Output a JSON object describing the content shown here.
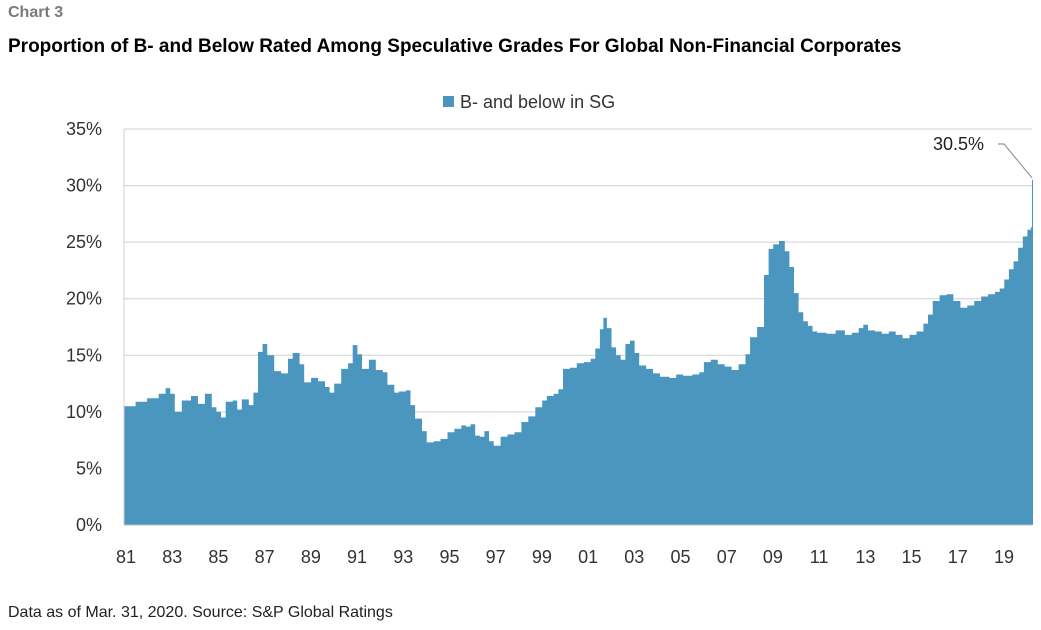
{
  "header": {
    "eyebrow": "Chart 3",
    "title": "Proportion of B- and Below Rated Among Speculative Grades For Global Non-Financial Corporates"
  },
  "footer": {
    "source": "Data as of Mar. 31, 2020. Source: S&P Global Ratings"
  },
  "chart_data": {
    "type": "area",
    "title": "Proportion of B- and Below Rated Among Speculative Grades For Global Non-Financial Corporates",
    "xlabel": "",
    "ylabel": "",
    "series": [
      {
        "name": "B- and below in SG",
        "color": "#4a96bf",
        "points": [
          [
            1981.0,
            10.5
          ],
          [
            1981.5,
            10.9
          ],
          [
            1982.0,
            11.2
          ],
          [
            1982.5,
            11.6
          ],
          [
            1982.8,
            12.1
          ],
          [
            1983.0,
            11.6
          ],
          [
            1983.2,
            10.0
          ],
          [
            1983.5,
            11.0
          ],
          [
            1983.9,
            11.4
          ],
          [
            1984.2,
            10.7
          ],
          [
            1984.5,
            11.6
          ],
          [
            1984.8,
            10.4
          ],
          [
            1985.0,
            10.0
          ],
          [
            1985.2,
            9.5
          ],
          [
            1985.4,
            10.9
          ],
          [
            1985.7,
            11.0
          ],
          [
            1985.9,
            10.2
          ],
          [
            1986.1,
            11.1
          ],
          [
            1986.4,
            10.6
          ],
          [
            1986.6,
            11.7
          ],
          [
            1986.8,
            15.3
          ],
          [
            1987.0,
            16.0
          ],
          [
            1987.2,
            15.0
          ],
          [
            1987.5,
            13.6
          ],
          [
            1987.8,
            13.4
          ],
          [
            1988.1,
            14.7
          ],
          [
            1988.3,
            15.2
          ],
          [
            1988.6,
            14.2
          ],
          [
            1988.8,
            12.6
          ],
          [
            1989.1,
            13.0
          ],
          [
            1989.4,
            12.7
          ],
          [
            1989.7,
            12.2
          ],
          [
            1989.9,
            11.7
          ],
          [
            1990.1,
            12.5
          ],
          [
            1990.4,
            13.8
          ],
          [
            1990.7,
            14.3
          ],
          [
            1990.9,
            15.9
          ],
          [
            1991.1,
            15.1
          ],
          [
            1991.3,
            13.8
          ],
          [
            1991.6,
            14.6
          ],
          [
            1991.9,
            13.7
          ],
          [
            1992.2,
            13.5
          ],
          [
            1992.4,
            12.4
          ],
          [
            1992.7,
            11.7
          ],
          [
            1992.9,
            11.8
          ],
          [
            1993.2,
            11.9
          ],
          [
            1993.4,
            10.6
          ],
          [
            1993.6,
            9.4
          ],
          [
            1993.9,
            8.3
          ],
          [
            1994.1,
            7.3
          ],
          [
            1994.4,
            7.4
          ],
          [
            1994.7,
            7.6
          ],
          [
            1995.0,
            8.2
          ],
          [
            1995.3,
            8.5
          ],
          [
            1995.6,
            8.8
          ],
          [
            1995.8,
            8.7
          ],
          [
            1996.0,
            8.9
          ],
          [
            1996.2,
            7.9
          ],
          [
            1996.4,
            7.8
          ],
          [
            1996.6,
            8.3
          ],
          [
            1996.8,
            7.4
          ],
          [
            1997.0,
            7.0
          ],
          [
            1997.3,
            7.8
          ],
          [
            1997.6,
            8.0
          ],
          [
            1997.9,
            8.2
          ],
          [
            1998.2,
            9.1
          ],
          [
            1998.5,
            9.6
          ],
          [
            1998.8,
            10.4
          ],
          [
            1999.1,
            11.0
          ],
          [
            1999.3,
            11.4
          ],
          [
            1999.6,
            11.6
          ],
          [
            1999.8,
            12.0
          ],
          [
            2000.0,
            13.8
          ],
          [
            2000.3,
            13.9
          ],
          [
            2000.6,
            14.3
          ],
          [
            2000.9,
            14.4
          ],
          [
            2001.2,
            14.7
          ],
          [
            2001.4,
            15.6
          ],
          [
            2001.6,
            17.3
          ],
          [
            2001.75,
            18.3
          ],
          [
            2001.9,
            17.4
          ],
          [
            2002.1,
            15.7
          ],
          [
            2002.3,
            15.0
          ],
          [
            2002.5,
            14.6
          ],
          [
            2002.7,
            16.0
          ],
          [
            2002.9,
            16.3
          ],
          [
            2003.1,
            15.2
          ],
          [
            2003.3,
            14.1
          ],
          [
            2003.6,
            13.8
          ],
          [
            2003.9,
            13.4
          ],
          [
            2004.2,
            13.1
          ],
          [
            2004.6,
            13.0
          ],
          [
            2004.9,
            13.3
          ],
          [
            2005.2,
            13.2
          ],
          [
            2005.6,
            13.3
          ],
          [
            2005.9,
            13.5
          ],
          [
            2006.1,
            14.4
          ],
          [
            2006.4,
            14.6
          ],
          [
            2006.7,
            14.2
          ],
          [
            2007.0,
            14.0
          ],
          [
            2007.3,
            13.7
          ],
          [
            2007.6,
            14.2
          ],
          [
            2007.9,
            15.1
          ],
          [
            2008.1,
            16.6
          ],
          [
            2008.4,
            17.5
          ],
          [
            2008.7,
            22.1
          ],
          [
            2008.9,
            24.4
          ],
          [
            2009.1,
            24.8
          ],
          [
            2009.35,
            25.1
          ],
          [
            2009.6,
            24.2
          ],
          [
            2009.8,
            22.8
          ],
          [
            2010.0,
            20.5
          ],
          [
            2010.2,
            18.8
          ],
          [
            2010.4,
            18.0
          ],
          [
            2010.6,
            17.6
          ],
          [
            2010.8,
            17.1
          ],
          [
            2011.0,
            17.0
          ],
          [
            2011.4,
            16.9
          ],
          [
            2011.8,
            17.2
          ],
          [
            2012.2,
            16.8
          ],
          [
            2012.5,
            17.0
          ],
          [
            2012.8,
            17.4
          ],
          [
            2013.0,
            17.7
          ],
          [
            2013.2,
            17.2
          ],
          [
            2013.5,
            17.1
          ],
          [
            2013.8,
            16.9
          ],
          [
            2014.1,
            17.1
          ],
          [
            2014.4,
            16.8
          ],
          [
            2014.7,
            16.5
          ],
          [
            2015.0,
            16.8
          ],
          [
            2015.3,
            17.1
          ],
          [
            2015.6,
            17.8
          ],
          [
            2015.8,
            18.6
          ],
          [
            2016.0,
            19.8
          ],
          [
            2016.3,
            20.3
          ],
          [
            2016.6,
            20.4
          ],
          [
            2016.9,
            19.8
          ],
          [
            2017.2,
            19.2
          ],
          [
            2017.5,
            19.4
          ],
          [
            2017.8,
            19.8
          ],
          [
            2018.1,
            20.2
          ],
          [
            2018.4,
            20.4
          ],
          [
            2018.7,
            20.6
          ],
          [
            2018.9,
            20.9
          ],
          [
            2019.1,
            21.7
          ],
          [
            2019.3,
            22.6
          ],
          [
            2019.5,
            23.3
          ],
          [
            2019.7,
            24.5
          ],
          [
            2019.9,
            25.5
          ],
          [
            2020.1,
            26.1
          ],
          [
            2020.25,
            26.3
          ],
          [
            2020.3,
            30.5
          ]
        ]
      }
    ],
    "xlim": [
      1981,
      2020.3
    ],
    "ylim": [
      0,
      35
    ],
    "y_ticks": [
      0,
      5,
      10,
      15,
      20,
      25,
      30,
      35
    ],
    "y_tick_labels": [
      "0%",
      "5%",
      "10%",
      "15%",
      "20%",
      "25%",
      "30%",
      "35%"
    ],
    "x_ticks": [
      1981,
      1983,
      1985,
      1987,
      1989,
      1991,
      1993,
      1995,
      1997,
      1999,
      2001,
      2003,
      2005,
      2007,
      2009,
      2011,
      2013,
      2015,
      2017,
      2019
    ],
    "x_tick_labels": [
      "81",
      "83",
      "85",
      "87",
      "89",
      "91",
      "93",
      "95",
      "97",
      "99",
      "01",
      "03",
      "05",
      "07",
      "09",
      "11",
      "13",
      "15",
      "17",
      "19"
    ],
    "grid": "horizontal",
    "legend": {
      "position": "top-center",
      "label": "B- and below in SG"
    },
    "annotations": [
      {
        "text": "30.5%",
        "x": 2020.3,
        "y": 30.5
      }
    ]
  }
}
